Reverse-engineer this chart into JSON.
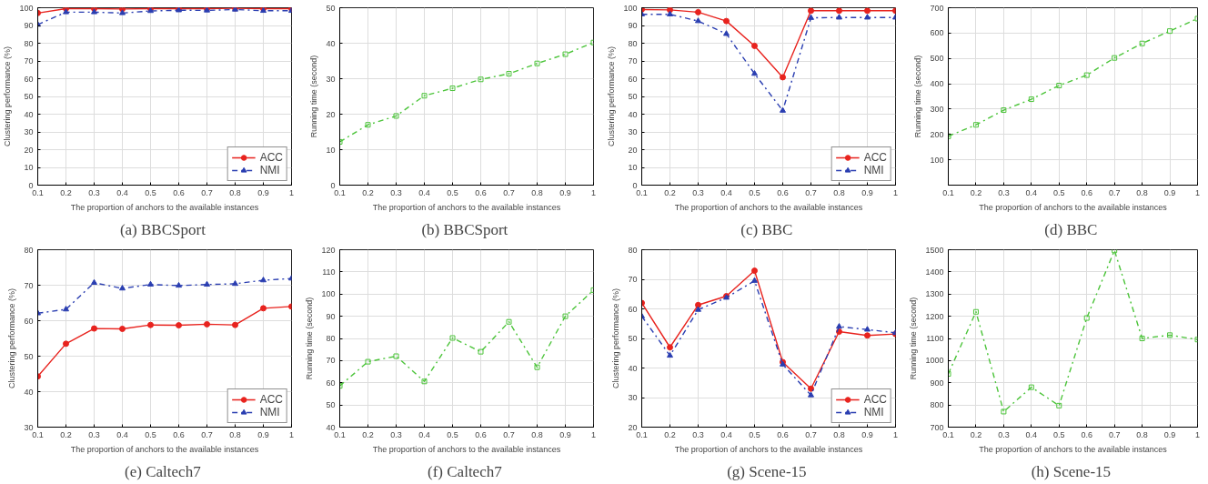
{
  "chart_data": [
    {
      "type": "line",
      "title": "(a)  BBCSport",
      "xlabel": "The proportion of anchors to the available instances",
      "ylabel": "Clustering performance (%)",
      "x": [
        0.1,
        0.2,
        0.3,
        0.4,
        0.5,
        0.6,
        0.7,
        0.8,
        0.9,
        1
      ],
      "xlim": [
        0.1,
        1
      ],
      "xticks": [
        0.1,
        0.2,
        0.3,
        0.4,
        0.5,
        0.6,
        0.7,
        0.8,
        0.9,
        1
      ],
      "ylim": [
        0,
        100
      ],
      "yticks": [
        0,
        10,
        20,
        30,
        40,
        50,
        60,
        70,
        80,
        90,
        100
      ],
      "grid": true,
      "legend": "bottom right",
      "series": [
        {
          "name": "ACC",
          "color": "#e8231e",
          "marker": "circle",
          "line_style": "solid",
          "values": [
            97,
            99.5,
            99.5,
            99.3,
            99.5,
            99.5,
            99.5,
            99.7,
            99.5,
            99.5
          ]
        },
        {
          "name": "NMI",
          "color": "#2a3eb1",
          "marker": "triangle",
          "line_style": "dashed",
          "values": [
            90.5,
            97.5,
            97.5,
            97,
            98.2,
            98.6,
            98.5,
            99,
            98.3,
            98.3
          ]
        }
      ]
    },
    {
      "type": "line",
      "title": "(b)  BBCSport",
      "xlabel": "The proportion of anchors to the available instances",
      "ylabel": "Running time (second)",
      "x": [
        0.1,
        0.2,
        0.3,
        0.4,
        0.5,
        0.6,
        0.7,
        0.8,
        0.9,
        1
      ],
      "xlim": [
        0.1,
        1
      ],
      "xticks": [
        0.1,
        0.2,
        0.3,
        0.4,
        0.5,
        0.6,
        0.7,
        0.8,
        0.9,
        1
      ],
      "ylim": [
        0,
        50
      ],
      "yticks": [
        0,
        10,
        20,
        30,
        40,
        50
      ],
      "grid": true,
      "series": [
        {
          "color": "#4cc43a",
          "marker": "square",
          "line_style": "dashed",
          "values": [
            12.2,
            17,
            19.5,
            25.2,
            27.3,
            29.8,
            31.4,
            34.3,
            36.9,
            40.2
          ]
        }
      ]
    },
    {
      "type": "line",
      "title": "(c)  BBC",
      "xlabel": "The proportion of anchors to the available instances",
      "ylabel": "Clustering performance (%)",
      "x": [
        0.1,
        0.2,
        0.3,
        0.4,
        0.5,
        0.6,
        0.7,
        0.8,
        0.9,
        1
      ],
      "xlim": [
        0.1,
        1
      ],
      "xticks": [
        0.1,
        0.2,
        0.3,
        0.4,
        0.5,
        0.6,
        0.7,
        0.8,
        0.9,
        1
      ],
      "ylim": [
        0,
        100
      ],
      "yticks": [
        0,
        10,
        20,
        30,
        40,
        50,
        60,
        70,
        80,
        90,
        100
      ],
      "grid": true,
      "legend": "bottom right",
      "series": [
        {
          "name": "ACC",
          "color": "#e8231e",
          "marker": "circle",
          "line_style": "solid",
          "values": [
            99,
            98.8,
            97.5,
            92.5,
            78.5,
            60.8,
            98.3,
            98.3,
            98.3,
            98.3
          ]
        },
        {
          "name": "NMI",
          "color": "#2a3eb1",
          "marker": "triangle",
          "line_style": "dashed",
          "values": [
            96.3,
            96.3,
            92.5,
            85.3,
            62.8,
            42,
            94.3,
            94.5,
            94.5,
            94.5
          ]
        }
      ]
    },
    {
      "type": "line",
      "title": "(d)  BBC",
      "xlabel": "The proportion of anchors to the available instances",
      "ylabel": "Running time (second)",
      "x": [
        0.1,
        0.2,
        0.3,
        0.4,
        0.5,
        0.6,
        0.7,
        0.8,
        0.9,
        1
      ],
      "xlim": [
        0.1,
        1
      ],
      "xticks": [
        0.1,
        0.2,
        0.3,
        0.4,
        0.5,
        0.6,
        0.7,
        0.8,
        0.9,
        1
      ],
      "ylim": [
        0,
        700
      ],
      "yticks": [
        100,
        200,
        300,
        400,
        500,
        600,
        700
      ],
      "grid": true,
      "series": [
        {
          "color": "#4cc43a",
          "marker": "square",
          "line_style": "dashed",
          "values": [
            193,
            238,
            296,
            339,
            393,
            434,
            502,
            559,
            608,
            657
          ]
        }
      ]
    },
    {
      "type": "line",
      "title": "(e)  Caltech7",
      "xlabel": "The proportion of anchors to the available instances",
      "ylabel": "Clustering performance (%)",
      "x": [
        0.1,
        0.2,
        0.3,
        0.4,
        0.5,
        0.6,
        0.7,
        0.8,
        0.9,
        1
      ],
      "xlim": [
        0.1,
        1
      ],
      "xticks": [
        0.1,
        0.2,
        0.3,
        0.4,
        0.5,
        0.6,
        0.7,
        0.8,
        0.9,
        1
      ],
      "ylim": [
        30,
        80
      ],
      "yticks": [
        30,
        40,
        50,
        60,
        70,
        80
      ],
      "grid": true,
      "legend": "bottom right",
      "series": [
        {
          "name": "ACC",
          "color": "#e8231e",
          "marker": "circle",
          "line_style": "solid",
          "values": [
            44.3,
            53.5,
            57.8,
            57.7,
            58.8,
            58.7,
            59,
            58.8,
            63.5,
            64
          ]
        },
        {
          "name": "NMI",
          "color": "#2a3eb1",
          "marker": "triangle",
          "line_style": "dashed",
          "values": [
            62.1,
            63.2,
            70.7,
            69.1,
            70.2,
            69.9,
            70.2,
            70.4,
            71.4,
            71.9
          ]
        }
      ]
    },
    {
      "type": "line",
      "title": "(f)  Caltech7",
      "xlabel": "The proportion of anchors to the available instances",
      "ylabel": "Running time (second)",
      "x": [
        0.1,
        0.2,
        0.3,
        0.4,
        0.5,
        0.6,
        0.7,
        0.8,
        0.9,
        1
      ],
      "xlim": [
        0.1,
        1
      ],
      "xticks": [
        0.1,
        0.2,
        0.3,
        0.4,
        0.5,
        0.6,
        0.7,
        0.8,
        0.9,
        1
      ],
      "ylim": [
        40,
        120
      ],
      "yticks": [
        40,
        50,
        60,
        70,
        80,
        90,
        100,
        110,
        120
      ],
      "grid": true,
      "series": [
        {
          "color": "#4cc43a",
          "marker": "square",
          "line_style": "dashed",
          "values": [
            58.6,
            69.5,
            72,
            60.6,
            80.2,
            74,
            87.5,
            67,
            90,
            101.8
          ]
        }
      ]
    },
    {
      "type": "line",
      "title": "(g)  Scene-15",
      "xlabel": "The proportion of anchors to the available instances",
      "ylabel": "Clustering performance (%)",
      "x": [
        0.1,
        0.2,
        0.3,
        0.4,
        0.5,
        0.6,
        0.7,
        0.8,
        0.9,
        1
      ],
      "xlim": [
        0.1,
        1
      ],
      "xticks": [
        0.1,
        0.2,
        0.3,
        0.4,
        0.5,
        0.6,
        0.7,
        0.8,
        0.9,
        1
      ],
      "ylim": [
        20,
        80
      ],
      "yticks": [
        20,
        30,
        40,
        50,
        60,
        70,
        80
      ],
      "grid": true,
      "legend": "bottom right",
      "series": [
        {
          "name": "ACC",
          "color": "#e8231e",
          "marker": "circle",
          "line_style": "solid",
          "values": [
            62,
            47,
            61.3,
            64.3,
            72.9,
            42,
            33,
            52.3,
            51,
            51.5
          ]
        },
        {
          "name": "NMI",
          "color": "#2a3eb1",
          "marker": "triangle",
          "line_style": "dashed",
          "values": [
            57.5,
            44.2,
            59.7,
            63.8,
            69.5,
            41.2,
            30.8,
            54,
            53,
            51.9
          ]
        }
      ]
    },
    {
      "type": "line",
      "title": "(h)  Scene-15",
      "xlabel": "The proportion of anchors to the available instances",
      "ylabel": "Running time (second)",
      "x": [
        0.1,
        0.2,
        0.3,
        0.4,
        0.5,
        0.6,
        0.7,
        0.8,
        0.9,
        1
      ],
      "xlim": [
        0.1,
        1
      ],
      "xticks": [
        0.1,
        0.2,
        0.3,
        0.4,
        0.5,
        0.6,
        0.7,
        0.8,
        0.9,
        1
      ],
      "ylim": [
        700,
        1500
      ],
      "yticks": [
        700,
        800,
        900,
        1000,
        1100,
        1200,
        1300,
        1400,
        1500
      ],
      "grid": true,
      "series": [
        {
          "color": "#4cc43a",
          "marker": "square",
          "line_style": "dashed",
          "values": [
            940,
            1220,
            770,
            880,
            797,
            1192,
            1497,
            1100,
            1115,
            1095
          ]
        }
      ]
    }
  ]
}
